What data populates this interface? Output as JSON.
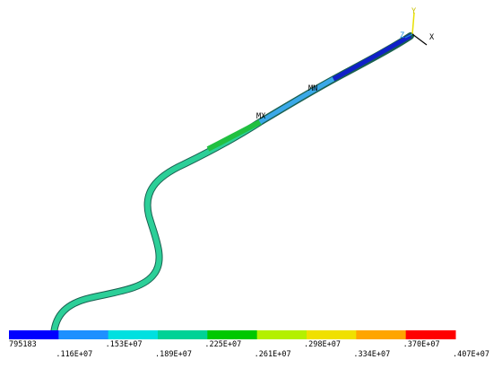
{
  "plot": {
    "triad": {
      "y": "Y",
      "z": "Z",
      "x": "X"
    },
    "markers": {
      "min": "MN",
      "max": "MX"
    },
    "legend": {
      "colors": [
        "#0000ff",
        "#1e90ff",
        "#00e0e0",
        "#00d296",
        "#00c800",
        "#b4f000",
        "#f0e000",
        "#ffa500",
        "#ff0000"
      ],
      "labels": [
        "795183",
        ".116E+07",
        ".153E+07",
        ".189E+07",
        ".225E+07",
        ".261E+07",
        ".298E+07",
        ".334E+07",
        ".370E+07",
        ".407E+07"
      ]
    }
  }
}
